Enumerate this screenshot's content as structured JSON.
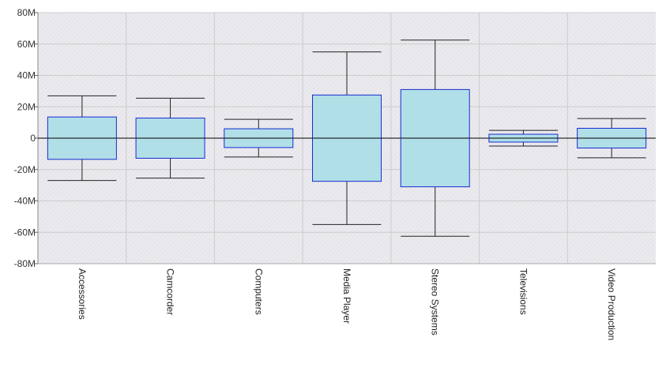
{
  "chart_data": {
    "type": "box",
    "title": "",
    "xlabel": "",
    "ylabel": "",
    "ylim": [
      -80000000,
      80000000
    ],
    "y_ticks": [
      80000000,
      60000000,
      40000000,
      20000000,
      0,
      -20000000,
      -40000000,
      -60000000,
      -80000000
    ],
    "y_tick_labels": [
      "80M",
      "60M",
      "40M",
      "20M",
      "0",
      "-20M",
      "-40M",
      "-60M",
      "-80M"
    ],
    "grid": true,
    "legend": "none",
    "categories": [
      "Accessories",
      "Camcorder",
      "Computers",
      "Media Player",
      "Stereo Systems",
      "Televisions",
      "Video Production"
    ],
    "boxes": [
      {
        "min": -27000000,
        "q1": -13500000,
        "q3": 13500000,
        "max": 27000000
      },
      {
        "min": -25500000,
        "q1": -12800000,
        "q3": 12800000,
        "max": 25500000
      },
      {
        "min": -12000000,
        "q1": -6000000,
        "q3": 6000000,
        "max": 12000000
      },
      {
        "min": -55000000,
        "q1": -27500000,
        "q3": 27500000,
        "max": 55000000
      },
      {
        "min": -62500000,
        "q1": -31000000,
        "q3": 31000000,
        "max": 62500000
      },
      {
        "min": -5000000,
        "q1": -2500000,
        "q3": 2500000,
        "max": 5000000
      },
      {
        "min": -12500000,
        "q1": -6300000,
        "q3": 6300000,
        "max": 12500000
      }
    ],
    "colors": {
      "box_fill": "#b0dfe8",
      "box_stroke": "#1a2bd0",
      "whisker": "#222222",
      "plot_bg": "#eae9ee",
      "grid": "#cccccc",
      "zero_line": "#000000"
    }
  }
}
